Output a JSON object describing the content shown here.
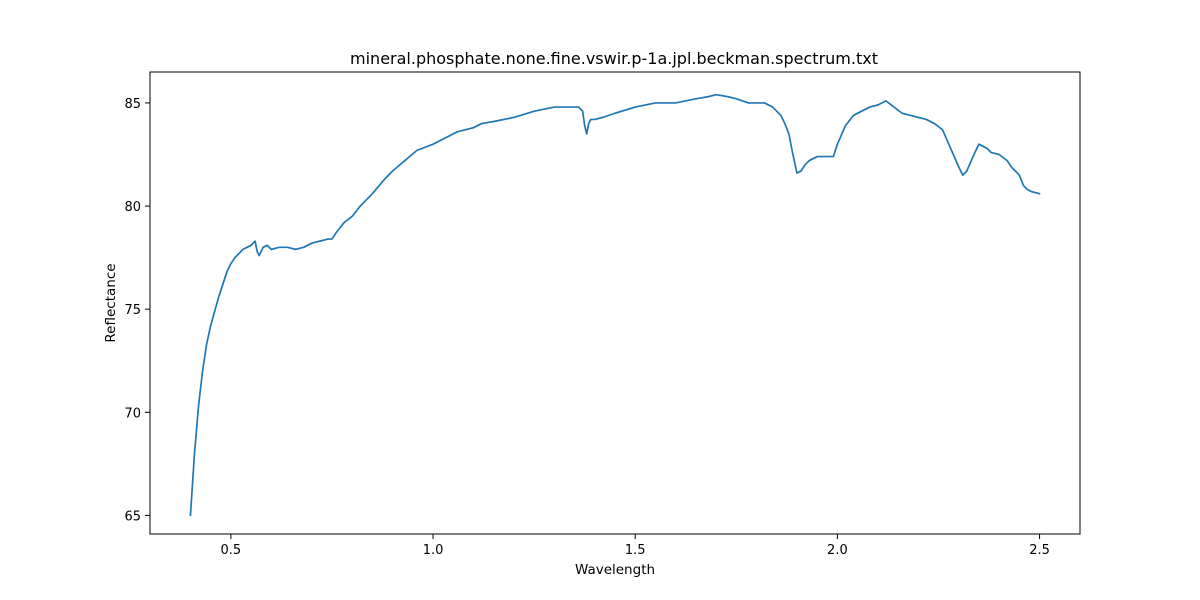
{
  "chart_data": {
    "type": "line",
    "title": "mineral.phosphate.none.fine.vswir.p-1a.jpl.beckman.spectrum.txt",
    "xlabel": "Wavelength",
    "ylabel": "Reflectance",
    "xlim": [
      0.3,
      2.6
    ],
    "ylim": [
      64.1,
      86.5
    ],
    "xticks": [
      0.5,
      1.0,
      1.5,
      2.0,
      2.5
    ],
    "xtick_labels": [
      "0.5",
      "1.0",
      "1.5",
      "2.0",
      "2.5"
    ],
    "yticks": [
      65,
      70,
      75,
      80,
      85
    ],
    "ytick_labels": [
      "65",
      "70",
      "75",
      "80",
      "85"
    ],
    "grid": false,
    "legend": false,
    "line_color": "#1f77b4",
    "series": [
      {
        "x": [
          0.4,
          0.41,
          0.42,
          0.43,
          0.44,
          0.45,
          0.46,
          0.47,
          0.48,
          0.49,
          0.5,
          0.51,
          0.52,
          0.53,
          0.54,
          0.55,
          0.56,
          0.565,
          0.57,
          0.58,
          0.59,
          0.6,
          0.62,
          0.64,
          0.66,
          0.68,
          0.7,
          0.72,
          0.74,
          0.75,
          0.76,
          0.78,
          0.8,
          0.82,
          0.85,
          0.88,
          0.9,
          0.93,
          0.96,
          1.0,
          1.03,
          1.06,
          1.1,
          1.12,
          1.15,
          1.2,
          1.25,
          1.3,
          1.33,
          1.35,
          1.36,
          1.37,
          1.375,
          1.38,
          1.385,
          1.39,
          1.4,
          1.42,
          1.45,
          1.5,
          1.55,
          1.6,
          1.65,
          1.68,
          1.7,
          1.73,
          1.75,
          1.78,
          1.8,
          1.82,
          1.84,
          1.86,
          1.87,
          1.88,
          1.89,
          1.9,
          1.91,
          1.92,
          1.93,
          1.95,
          1.97,
          1.99,
          2.0,
          2.02,
          2.04,
          2.06,
          2.08,
          2.1,
          2.12,
          2.14,
          2.16,
          2.18,
          2.2,
          2.22,
          2.24,
          2.26,
          2.28,
          2.3,
          2.31,
          2.32,
          2.34,
          2.35,
          2.37,
          2.38,
          2.4,
          2.42,
          2.43,
          2.45,
          2.46,
          2.47,
          2.48,
          2.5
        ],
        "y": [
          65.0,
          68.0,
          70.3,
          72.0,
          73.3,
          74.2,
          74.9,
          75.6,
          76.2,
          76.8,
          77.2,
          77.5,
          77.7,
          77.9,
          78.0,
          78.1,
          78.3,
          77.8,
          77.6,
          78.0,
          78.1,
          77.9,
          78.0,
          78.0,
          77.9,
          78.0,
          78.2,
          78.3,
          78.4,
          78.4,
          78.7,
          79.2,
          79.5,
          80.0,
          80.6,
          81.3,
          81.7,
          82.2,
          82.7,
          83.0,
          83.3,
          83.6,
          83.8,
          84.0,
          84.1,
          84.3,
          84.6,
          84.8,
          84.8,
          84.8,
          84.8,
          84.6,
          83.9,
          83.5,
          84.0,
          84.2,
          84.2,
          84.3,
          84.5,
          84.8,
          85.0,
          85.0,
          85.2,
          85.3,
          85.4,
          85.3,
          85.2,
          85.0,
          85.0,
          85.0,
          84.8,
          84.4,
          84.0,
          83.5,
          82.5,
          81.6,
          81.7,
          82.0,
          82.2,
          82.4,
          82.4,
          82.4,
          83.0,
          83.9,
          84.4,
          84.6,
          84.8,
          84.9,
          85.1,
          84.8,
          84.5,
          84.4,
          84.3,
          84.2,
          84.0,
          83.7,
          82.8,
          81.9,
          81.5,
          81.7,
          82.6,
          83.0,
          82.8,
          82.6,
          82.5,
          82.2,
          81.9,
          81.5,
          81.0,
          80.8,
          80.7,
          80.6
        ]
      }
    ]
  }
}
